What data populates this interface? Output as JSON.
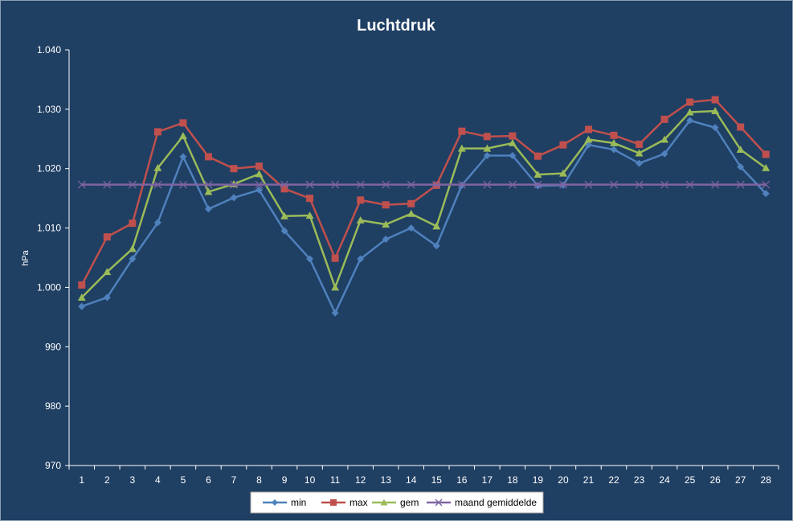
{
  "chart_data": {
    "type": "line",
    "title": "Luchtdruk",
    "xlabel": "",
    "ylabel": "hPa",
    "ylim": [
      970,
      1040
    ],
    "yticks": [
      970,
      980,
      990,
      1000,
      1010,
      1020,
      1030,
      1040
    ],
    "ytick_labels": [
      "970",
      "980",
      "990",
      "1.000",
      "1.010",
      "1.020",
      "1.030",
      "1.040"
    ],
    "categories": [
      "1",
      "2",
      "3",
      "4",
      "5",
      "6",
      "7",
      "8",
      "9",
      "10",
      "11",
      "12",
      "13",
      "14",
      "15",
      "16",
      "17",
      "18",
      "19",
      "20",
      "21",
      "22",
      "23",
      "24",
      "25",
      "26",
      "27",
      "28"
    ],
    "grid": false,
    "legend_position": "bottom",
    "series": [
      {
        "name": "min",
        "color": "#4f81bd",
        "marker": "diamond",
        "values": [
          996.8,
          998.3,
          1004.8,
          1010.9,
          1022.0,
          1013.2,
          1015.1,
          1016.4,
          1009.5,
          1004.8,
          995.7,
          1004.8,
          1008.1,
          1010.0,
          1007.0,
          1017.2,
          1022.2,
          1022.2,
          1017.1,
          1017.2,
          1024.0,
          1023.2,
          1020.9,
          1022.5,
          1028.1,
          1026.9,
          1020.3,
          1015.8
        ]
      },
      {
        "name": "max",
        "color": "#c0504d",
        "marker": "square",
        "values": [
          1000.4,
          1008.5,
          1010.8,
          1026.2,
          1027.7,
          1022.0,
          1020.0,
          1020.4,
          1016.6,
          1015.0,
          1004.9,
          1014.7,
          1013.9,
          1014.1,
          1017.2,
          1026.3,
          1025.4,
          1025.5,
          1022.1,
          1024.0,
          1026.6,
          1025.6,
          1024.1,
          1028.3,
          1031.2,
          1031.6,
          1027.0,
          1022.4
        ]
      },
      {
        "name": "gem",
        "color": "#9bbb59",
        "marker": "triangle",
        "values": [
          998.3,
          1002.6,
          1006.5,
          1020.1,
          1025.5,
          1016.1,
          1017.4,
          1019.1,
          1012.0,
          1012.1,
          1000.0,
          1011.3,
          1010.6,
          1012.4,
          1010.3,
          1023.4,
          1023.4,
          1024.3,
          1019.0,
          1019.2,
          1024.9,
          1024.3,
          1022.6,
          1024.9,
          1029.5,
          1029.7,
          1023.2,
          1020.1
        ]
      },
      {
        "name": "maand gemiddelde",
        "color": "#8064a2",
        "marker": "x",
        "values": [
          1017.3,
          1017.3,
          1017.3,
          1017.3,
          1017.3,
          1017.3,
          1017.3,
          1017.3,
          1017.3,
          1017.3,
          1017.3,
          1017.3,
          1017.3,
          1017.3,
          1017.3,
          1017.3,
          1017.3,
          1017.3,
          1017.3,
          1017.3,
          1017.3,
          1017.3,
          1017.3,
          1017.3,
          1017.3,
          1017.3,
          1017.3,
          1017.3
        ]
      }
    ]
  },
  "colors": {
    "background": "#1f3f63",
    "axis": "#ffffff",
    "legend_background": "#ffffff"
  }
}
